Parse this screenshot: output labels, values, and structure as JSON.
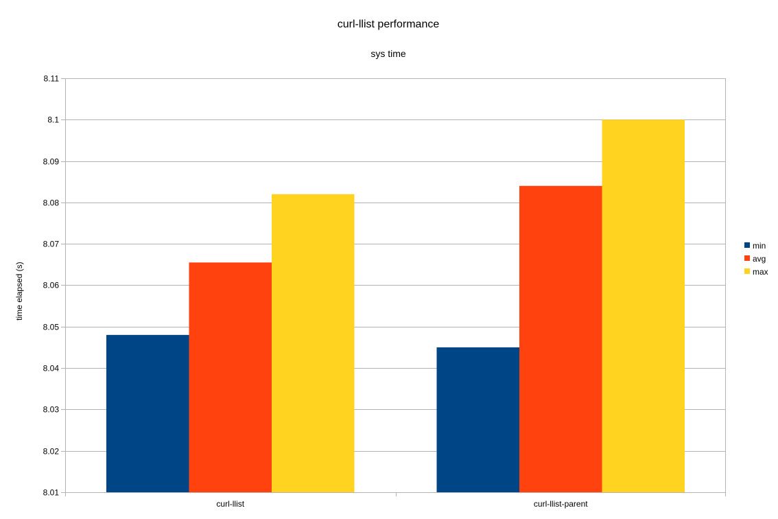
{
  "chart_data": {
    "type": "bar",
    "title": "curl-llist performance",
    "subtitle": "sys time",
    "xlabel": "",
    "ylabel": "time elapsed (s)",
    "categories": [
      "curl-llist",
      "curl-llist-parent"
    ],
    "series": [
      {
        "name": "min",
        "values": [
          8.048,
          8.045
        ],
        "color": "#004586"
      },
      {
        "name": "avg",
        "values": [
          8.0655,
          8.084
        ],
        "color": "#ff420e"
      },
      {
        "name": "max",
        "values": [
          8.082,
          8.1
        ],
        "color": "#ffd320"
      }
    ],
    "ylim": [
      8.01,
      8.11
    ],
    "yticks": [
      "8.01",
      "8.02",
      "8.03",
      "8.04",
      "8.05",
      "8.06",
      "8.07",
      "8.08",
      "8.09",
      "8.1",
      "8.11"
    ],
    "grid": true,
    "legend_position": "right"
  }
}
